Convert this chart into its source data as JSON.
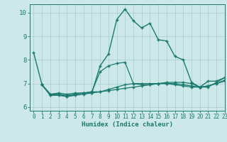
{
  "background_color": "#cce8e8",
  "grid_color": "#aacccc",
  "line_color": "#1a7a6e",
  "xlabel": "Humidex (Indice chaleur)",
  "xlim": [
    -0.5,
    23
  ],
  "ylim": [
    5.85,
    10.35
  ],
  "yticks": [
    6,
    7,
    8,
    9,
    10
  ],
  "xticks": [
    0,
    1,
    2,
    3,
    4,
    5,
    6,
    7,
    8,
    9,
    10,
    11,
    12,
    13,
    14,
    15,
    16,
    17,
    18,
    19,
    20,
    21,
    22,
    23
  ],
  "curve1_x": [
    0,
    1,
    2,
    3,
    4,
    5,
    6,
    7,
    8,
    9,
    10,
    11,
    12,
    13,
    14,
    15,
    16,
    17,
    18,
    19,
    20,
    21,
    22,
    23
  ],
  "curve1_y": [
    8.3,
    6.95,
    6.55,
    6.55,
    6.45,
    6.55,
    6.6,
    6.6,
    7.75,
    8.25,
    9.7,
    10.15,
    9.65,
    9.35,
    9.55,
    8.85,
    8.8,
    8.15,
    8.0,
    7.05,
    6.85,
    7.1,
    7.1,
    7.25
  ],
  "curve2_x": [
    1,
    2,
    3,
    4,
    5,
    6,
    7,
    8,
    9,
    10,
    11,
    12,
    13,
    14,
    15,
    16,
    17,
    18,
    19,
    20,
    21,
    22,
    23
  ],
  "curve2_y": [
    6.95,
    6.55,
    6.6,
    6.55,
    6.6,
    6.6,
    6.65,
    6.65,
    6.7,
    6.75,
    6.8,
    6.85,
    6.9,
    6.95,
    7.0,
    7.05,
    7.05,
    7.05,
    7.0,
    6.85,
    6.85,
    7.05,
    7.25
  ],
  "curve3_x": [
    1,
    2,
    3,
    4,
    5,
    6,
    7,
    8,
    9,
    10,
    11,
    12,
    13,
    14,
    15,
    16,
    17,
    18,
    19,
    20,
    21,
    22,
    23
  ],
  "curve3_y": [
    6.95,
    6.5,
    6.5,
    6.45,
    6.5,
    6.55,
    6.6,
    6.65,
    6.75,
    6.85,
    6.95,
    7.0,
    7.0,
    7.0,
    7.0,
    7.0,
    6.95,
    6.9,
    6.85,
    6.85,
    6.9,
    7.0,
    7.1
  ],
  "curve4_x": [
    1,
    2,
    3,
    4,
    5,
    6,
    7,
    8,
    9,
    10,
    11,
    12,
    13,
    14,
    15,
    16,
    17,
    18,
    19,
    20,
    21,
    22,
    23
  ],
  "curve4_y": [
    6.95,
    6.5,
    6.55,
    6.5,
    6.55,
    6.6,
    6.65,
    7.5,
    7.75,
    7.85,
    7.9,
    7.0,
    6.95,
    6.95,
    7.0,
    7.0,
    7.0,
    6.95,
    6.9,
    6.85,
    6.9,
    7.0,
    7.15
  ]
}
